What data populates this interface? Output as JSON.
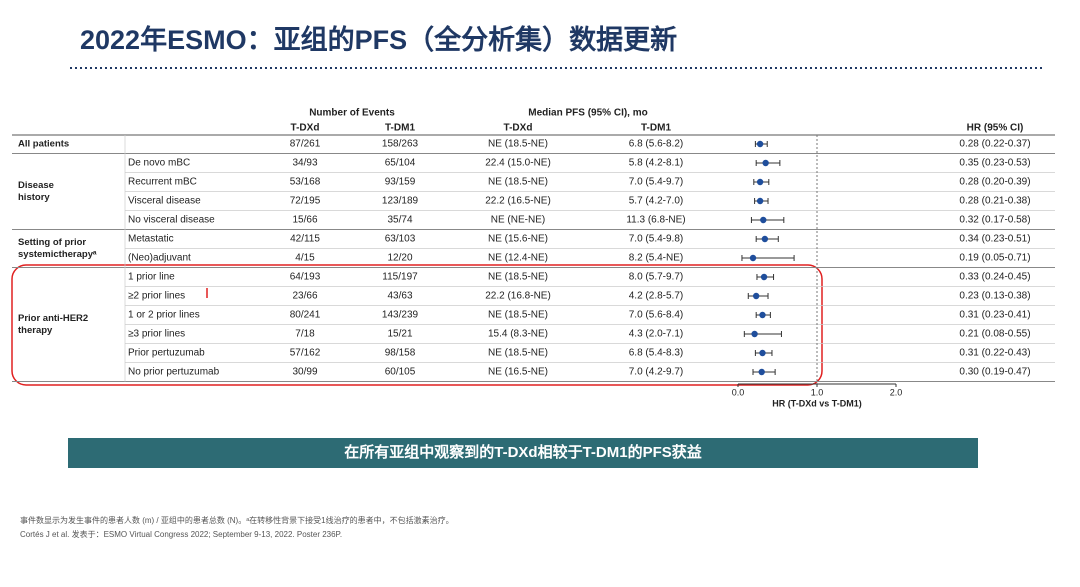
{
  "header": {
    "title": "2022年ESMO：亚组的PFS（全分析集）数据更新"
  },
  "table": {
    "group_headers": [
      "Number of Events",
      "Median PFS (95% CI), mo"
    ],
    "column_headers": [
      "T-DXd",
      "T-DM1",
      "T-DXd",
      "T-DM1",
      "HR (95% CI)"
    ],
    "groups": [
      {
        "lines": [
          "All patients"
        ],
        "rows": [
          0
        ]
      },
      {
        "lines": [
          "Disease",
          "history"
        ],
        "rows": [
          1,
          2,
          3,
          4
        ]
      },
      {
        "lines": [
          "Setting of prior",
          "systemictherapyᵃ"
        ],
        "rows": [
          5,
          6
        ]
      },
      {
        "lines": [
          "Prior anti-HER2",
          "therapy"
        ],
        "rows": [
          7,
          8,
          9,
          10,
          11,
          12
        ]
      }
    ],
    "rows": [
      [
        "",
        "87/261",
        "158/263",
        "NE (18.5-NE)",
        "6.8 (5.6-8.2)"
      ],
      [
        "De novo mBC",
        "34/93",
        "65/104",
        "22.4 (15.0-NE)",
        "5.8 (4.2-8.1)"
      ],
      [
        "Recurrent mBC",
        "53/168",
        "93/159",
        "NE (18.5-NE)",
        "7.0 (5.4-9.7)"
      ],
      [
        "Visceral disease",
        "72/195",
        "123/189",
        "22.2 (16.5-NE)",
        "5.7 (4.2-7.0)"
      ],
      [
        "No visceral disease",
        "15/66",
        "35/74",
        "NE (NE-NE)",
        "11.3 (6.8-NE)"
      ],
      [
        "Metastatic",
        "42/115",
        "63/103",
        "NE (15.6-NE)",
        "7.0 (5.4-9.8)"
      ],
      [
        "(Neo)adjuvant",
        "4/15",
        "12/20",
        "NE (12.4-NE)",
        "8.2 (5.4-NE)"
      ],
      [
        "1 prior line",
        "64/193",
        "115/197",
        "NE (18.5-NE)",
        "8.0 (5.7-9.7)"
      ],
      [
        "≥2 prior lines",
        "23/66",
        "43/63",
        "22.2 (16.8-NE)",
        "4.2 (2.8-5.7)"
      ],
      [
        "1 or 2 prior lines",
        "80/241",
        "143/239",
        "NE (18.5-NE)",
        "7.0 (5.6-8.4)"
      ],
      [
        "≥3 prior lines",
        "7/18",
        "15/21",
        "15.4 (8.3-NE)",
        "4.3 (2.0-7.1)"
      ],
      [
        "Prior pertuzumab",
        "57/162",
        "98/158",
        "NE (18.5-NE)",
        "6.8 (5.4-8.3)"
      ],
      [
        "No prior pertuzumab",
        "30/99",
        "60/105",
        "NE (16.5-NE)",
        "7.0 (4.2-9.7)"
      ]
    ]
  },
  "chart_data": {
    "type": "forest",
    "xlabel": "HR (T-DXd vs T-DM1)",
    "xlim": [
      0,
      2
    ],
    "xticks": [
      {
        "value": 0,
        "label": "0.0"
      },
      {
        "value": 1,
        "label": "1.0"
      },
      {
        "value": 2,
        "label": "2.0"
      }
    ],
    "reference_line": 1,
    "color": "#1f4e9c",
    "values": [
      0.28,
      0.35,
      0.28,
      0.28,
      0.32,
      0.34,
      0.19,
      0.33,
      0.23,
      0.31,
      0.21,
      0.31,
      0.3
    ],
    "lower": [
      0.22,
      0.23,
      0.2,
      0.21,
      0.17,
      0.23,
      0.05,
      0.24,
      0.13,
      0.23,
      0.08,
      0.22,
      0.19
    ],
    "upper": [
      0.37,
      0.53,
      0.39,
      0.38,
      0.58,
      0.51,
      0.71,
      0.45,
      0.38,
      0.41,
      0.55,
      0.43,
      0.47
    ],
    "value_labels": [
      "0.28 (0.22-0.37)",
      "0.35 (0.23-0.53)",
      "0.28 (0.20-0.39)",
      "0.28 (0.21-0.38)",
      "0.32 (0.17-0.58)",
      "0.34 (0.23-0.51)",
      "0.19 (0.05-0.71)",
      "0.33 (0.24-0.45)",
      "0.23 (0.13-0.38)",
      "0.31 (0.23-0.41)",
      "0.21 (0.08-0.55)",
      "0.31 (0.22-0.43)",
      "0.30 (0.19-0.47)"
    ]
  },
  "banner": "在所有亚组中观察到的T-DXd相较于T-DM1的PFS获益",
  "footnotes": [
    "事件数显示为发生事件的患者人数 (m) / 亚组中的患者总数 (N)。ᵃ在转移性背景下接受1线治疗的患者中，不包括激素治疗。",
    "Cortés J et al. 发表于：ESMO Virtual Congress 2022; September 9-13, 2022. Poster 236P."
  ]
}
